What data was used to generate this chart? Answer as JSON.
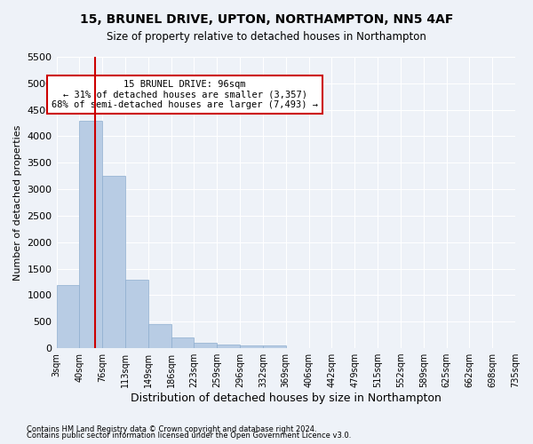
{
  "title1": "15, BRUNEL DRIVE, UPTON, NORTHAMPTON, NN5 4AF",
  "title2": "Size of property relative to detached houses in Northampton",
  "xlabel": "Distribution of detached houses by size in Northampton",
  "ylabel": "Number of detached properties",
  "footnote1": "Contains HM Land Registry data © Crown copyright and database right 2024.",
  "footnote2": "Contains public sector information licensed under the Open Government Licence v3.0.",
  "bin_labels": [
    "3sqm",
    "40sqm",
    "76sqm",
    "113sqm",
    "149sqm",
    "186sqm",
    "223sqm",
    "259sqm",
    "296sqm",
    "332sqm",
    "369sqm",
    "406sqm",
    "442sqm",
    "479sqm",
    "515sqm",
    "552sqm",
    "589sqm",
    "625sqm",
    "662sqm",
    "698sqm",
    "735sqm"
  ],
  "bar_values": [
    1200,
    4300,
    3250,
    1300,
    450,
    200,
    100,
    75,
    50,
    50,
    0,
    0,
    0,
    0,
    0,
    0,
    0,
    0,
    0,
    0
  ],
  "bar_color": "#b8cce4",
  "bar_edge_color": "#8eaecf",
  "ylim": [
    0,
    5500
  ],
  "yticks": [
    0,
    500,
    1000,
    1500,
    2000,
    2500,
    3000,
    3500,
    4000,
    4500,
    5000,
    5500
  ],
  "property_line_x": 1.7,
  "annotation_title": "15 BRUNEL DRIVE: 96sqm",
  "annotation_line1": "← 31% of detached houses are smaller (3,357)",
  "annotation_line2": "68% of semi-detached houses are larger (7,493) →",
  "annotation_box_color": "#ffffff",
  "annotation_border_color": "#cc0000",
  "vline_color": "#cc0000",
  "bg_color": "#eef2f8",
  "grid_color": "#ffffff"
}
